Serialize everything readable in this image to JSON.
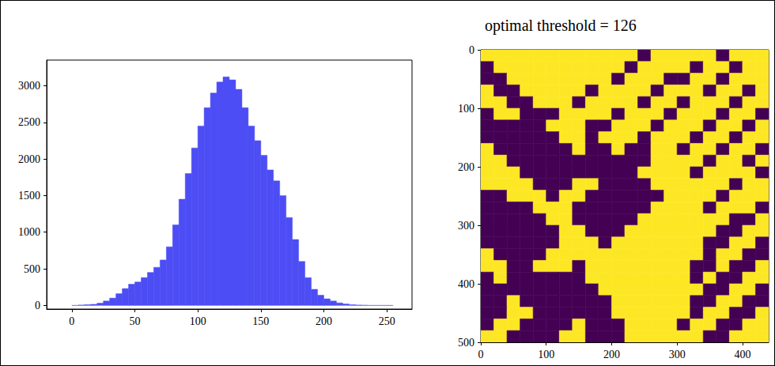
{
  "chart_data": [
    {
      "type": "histogram",
      "bins": [
        0,
        5,
        10,
        15,
        20,
        25,
        30,
        35,
        40,
        45,
        50,
        55,
        60,
        65,
        70,
        75,
        80,
        85,
        90,
        95,
        100,
        105,
        110,
        115,
        120,
        125,
        130,
        135,
        140,
        145,
        150,
        155,
        160,
        165,
        170,
        175,
        180,
        185,
        190,
        195,
        200,
        205,
        210,
        215,
        220,
        225,
        230,
        235,
        240,
        245,
        250,
        255
      ],
      "values": [
        0,
        5,
        10,
        15,
        30,
        60,
        100,
        160,
        230,
        290,
        320,
        380,
        450,
        520,
        620,
        800,
        1100,
        1450,
        1800,
        2150,
        2450,
        2700,
        2900,
        3050,
        3120,
        3080,
        2950,
        2700,
        2450,
        2250,
        2050,
        1850,
        1700,
        1500,
        1200,
        900,
        600,
        380,
        220,
        140,
        90,
        60,
        35,
        20,
        10,
        5,
        3,
        0,
        0,
        0,
        0
      ],
      "color": "#4d4df5",
      "xlim": [
        -20,
        270
      ],
      "xticks": [
        0,
        50,
        100,
        150,
        200,
        250
      ],
      "ylim": [
        -50,
        3350
      ],
      "yticks": [
        0,
        500,
        1000,
        1500,
        2000,
        2500,
        3000
      ]
    },
    {
      "type": "heatmap",
      "title": "optimal threshold = 126",
      "x": [
        0,
        20,
        40,
        60,
        80,
        100,
        120,
        140,
        160,
        180,
        200,
        220,
        240,
        260,
        280,
        300,
        320,
        340,
        360,
        380,
        400,
        420,
        440
      ],
      "y": [
        0,
        20,
        40,
        60,
        80,
        100,
        120,
        140,
        160,
        180,
        200,
        220,
        240,
        260,
        280,
        300,
        320,
        340,
        360,
        380,
        400,
        420,
        440,
        460,
        480,
        500
      ],
      "cells": [
        [
          1,
          1,
          1,
          1,
          1,
          1,
          1,
          1,
          1,
          1,
          1,
          1,
          0,
          1,
          1,
          1,
          1,
          1,
          0,
          1,
          1,
          1
        ],
        [
          0,
          1,
          1,
          1,
          1,
          1,
          1,
          1,
          1,
          1,
          1,
          0,
          1,
          1,
          1,
          1,
          0,
          1,
          1,
          0,
          1,
          1
        ],
        [
          0,
          0,
          1,
          1,
          1,
          1,
          1,
          1,
          1,
          1,
          0,
          1,
          1,
          1,
          0,
          0,
          1,
          1,
          0,
          1,
          1,
          1
        ],
        [
          1,
          0,
          0,
          1,
          1,
          1,
          1,
          1,
          0,
          1,
          1,
          1,
          1,
          0,
          1,
          1,
          1,
          0,
          1,
          1,
          0,
          1
        ],
        [
          1,
          1,
          0,
          0,
          1,
          1,
          1,
          0,
          1,
          1,
          1,
          1,
          0,
          1,
          1,
          0,
          1,
          1,
          1,
          0,
          1,
          1
        ],
        [
          0,
          1,
          1,
          0,
          0,
          0,
          1,
          1,
          1,
          1,
          0,
          1,
          1,
          1,
          0,
          1,
          1,
          1,
          0,
          1,
          1,
          0
        ],
        [
          0,
          0,
          0,
          0,
          0,
          1,
          1,
          1,
          0,
          0,
          1,
          1,
          1,
          0,
          1,
          1,
          1,
          0,
          1,
          1,
          0,
          1
        ],
        [
          0,
          0,
          0,
          0,
          0,
          0,
          1,
          1,
          0,
          1,
          1,
          1,
          0,
          1,
          1,
          1,
          0,
          1,
          1,
          0,
          1,
          1
        ],
        [
          1,
          0,
          0,
          0,
          0,
          0,
          0,
          1,
          0,
          0,
          1,
          0,
          0,
          1,
          1,
          0,
          1,
          1,
          0,
          1,
          1,
          0
        ],
        [
          1,
          1,
          0,
          0,
          0,
          0,
          0,
          0,
          0,
          0,
          0,
          0,
          0,
          1,
          1,
          1,
          1,
          0,
          1,
          1,
          0,
          1
        ],
        [
          1,
          1,
          1,
          0,
          0,
          0,
          0,
          0,
          0,
          0,
          0,
          0,
          1,
          1,
          1,
          1,
          0,
          1,
          1,
          1,
          1,
          0
        ],
        [
          1,
          1,
          1,
          1,
          0,
          0,
          0,
          1,
          1,
          0,
          0,
          0,
          0,
          1,
          1,
          1,
          1,
          1,
          1,
          0,
          1,
          1
        ],
        [
          0,
          0,
          1,
          1,
          1,
          0,
          1,
          1,
          0,
          0,
          0,
          0,
          0,
          0,
          1,
          1,
          1,
          1,
          0,
          1,
          1,
          1
        ],
        [
          0,
          0,
          0,
          0,
          1,
          1,
          1,
          0,
          0,
          0,
          0,
          0,
          0,
          1,
          1,
          1,
          1,
          0,
          1,
          1,
          1,
          0
        ],
        [
          0,
          0,
          0,
          0,
          0,
          1,
          1,
          0,
          0,
          0,
          0,
          0,
          1,
          1,
          1,
          1,
          1,
          1,
          1,
          0,
          0,
          1
        ],
        [
          0,
          0,
          0,
          0,
          0,
          0,
          1,
          1,
          0,
          0,
          0,
          1,
          1,
          1,
          1,
          1,
          1,
          1,
          0,
          0,
          1,
          1
        ],
        [
          0,
          0,
          0,
          0,
          0,
          0,
          1,
          1,
          1,
          0,
          1,
          1,
          1,
          1,
          1,
          1,
          1,
          0,
          0,
          1,
          1,
          0
        ],
        [
          1,
          0,
          0,
          0,
          0,
          1,
          1,
          1,
          1,
          1,
          1,
          1,
          1,
          1,
          1,
          1,
          1,
          0,
          1,
          1,
          0,
          0
        ],
        [
          1,
          1,
          0,
          0,
          1,
          1,
          1,
          0,
          1,
          1,
          1,
          1,
          1,
          1,
          1,
          1,
          0,
          0,
          1,
          0,
          0,
          1
        ],
        [
          0,
          1,
          0,
          0,
          0,
          0,
          0,
          0,
          1,
          1,
          1,
          1,
          1,
          1,
          1,
          1,
          0,
          1,
          0,
          0,
          1,
          1
        ],
        [
          0,
          0,
          0,
          0,
          0,
          0,
          0,
          0,
          0,
          1,
          1,
          1,
          1,
          1,
          1,
          1,
          1,
          0,
          0,
          1,
          1,
          0
        ],
        [
          0,
          0,
          1,
          0,
          0,
          0,
          0,
          0,
          0,
          0,
          1,
          1,
          1,
          1,
          1,
          1,
          0,
          0,
          1,
          1,
          0,
          0
        ],
        [
          0,
          0,
          1,
          1,
          0,
          0,
          0,
          0,
          0,
          0,
          1,
          1,
          1,
          1,
          1,
          1,
          0,
          1,
          1,
          0,
          0,
          1
        ],
        [
          0,
          1,
          1,
          0,
          0,
          0,
          0,
          1,
          0,
          0,
          0,
          1,
          1,
          1,
          1,
          0,
          1,
          1,
          0,
          0,
          1,
          1
        ],
        [
          1,
          1,
          0,
          0,
          0,
          0,
          1,
          1,
          0,
          0,
          0,
          1,
          1,
          1,
          1,
          1,
          1,
          0,
          0,
          1,
          1,
          1
        ]
      ],
      "colors": [
        "#440154",
        "#fde725"
      ],
      "xlim": [
        0,
        440
      ],
      "xticks": [
        0,
        100,
        200,
        300,
        400
      ],
      "ylim": [
        0,
        500
      ],
      "yticks": [
        0,
        100,
        200,
        300,
        400,
        500
      ]
    }
  ]
}
